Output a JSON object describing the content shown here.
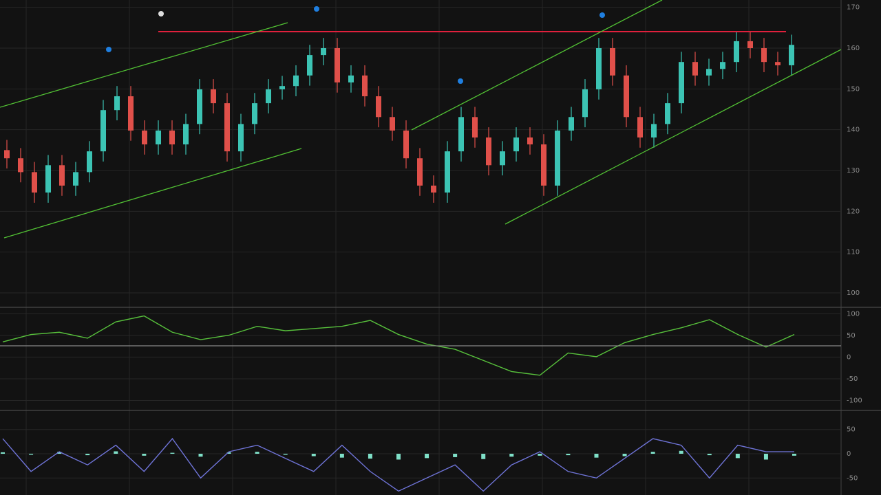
{
  "chart_data": [
    {
      "type": "candlestick",
      "open": [
        135.0,
        133.0,
        129.6,
        124.6,
        131.3,
        126.3,
        129.6,
        134.7,
        144.8,
        148.2,
        139.8,
        136.4,
        139.8,
        136.4,
        141.4,
        149.9,
        146.5,
        134.7,
        141.4,
        146.5,
        149.9,
        150.7,
        153.3,
        158.3,
        160.0,
        151.6,
        153.3,
        148.2,
        143.1,
        139.8,
        133.0,
        126.3,
        124.6,
        134.7,
        143.1,
        138.1,
        131.3,
        134.7,
        138.1,
        136.4,
        126.3,
        139.8,
        143.1,
        149.9,
        160.0,
        153.3,
        143.1,
        138.1,
        141.4,
        146.5,
        156.6,
        153.3,
        154.9,
        156.6,
        161.7,
        160.0,
        156.6,
        155.8
      ],
      "high": [
        137.5,
        135.5,
        132.1,
        133.8,
        133.8,
        132.1,
        137.2,
        147.3,
        150.7,
        150.7,
        142.3,
        142.3,
        142.3,
        143.9,
        152.4,
        152.4,
        149.0,
        143.9,
        149.0,
        152.4,
        153.2,
        155.8,
        160.8,
        162.5,
        162.5,
        155.8,
        155.8,
        150.7,
        145.6,
        142.3,
        135.5,
        128.8,
        137.2,
        145.6,
        145.6,
        140.6,
        137.2,
        140.6,
        140.6,
        138.9,
        142.3,
        145.6,
        152.4,
        162.5,
        162.5,
        155.8,
        145.6,
        143.9,
        149.0,
        159.1,
        159.1,
        157.4,
        159.1,
        164.2,
        164.2,
        162.5,
        159.1,
        163.3
      ],
      "low": [
        130.5,
        127.1,
        122.1,
        122.1,
        123.8,
        123.8,
        127.1,
        132.2,
        142.3,
        137.3,
        133.9,
        133.9,
        133.9,
        133.9,
        138.9,
        144.0,
        132.2,
        132.2,
        138.9,
        144.0,
        147.4,
        148.2,
        150.8,
        155.8,
        149.1,
        149.1,
        145.7,
        140.6,
        137.3,
        130.5,
        123.8,
        122.1,
        122.1,
        132.2,
        135.6,
        128.8,
        128.8,
        132.2,
        133.9,
        123.8,
        123.8,
        137.3,
        140.6,
        147.4,
        150.8,
        140.6,
        135.6,
        135.6,
        138.9,
        144.0,
        150.8,
        150.8,
        152.4,
        154.1,
        157.5,
        154.1,
        153.3,
        153.3
      ],
      "close": [
        133.0,
        129.6,
        124.6,
        131.3,
        126.3,
        129.6,
        134.7,
        144.8,
        148.2,
        139.8,
        136.4,
        139.8,
        136.4,
        141.4,
        149.9,
        146.5,
        134.7,
        141.4,
        146.5,
        149.9,
        150.7,
        153.3,
        158.3,
        160.0,
        151.6,
        153.3,
        148.2,
        143.1,
        139.8,
        133.0,
        126.3,
        124.6,
        134.7,
        143.1,
        138.1,
        131.3,
        134.7,
        138.1,
        136.4,
        126.3,
        139.8,
        143.1,
        149.9,
        160.0,
        153.3,
        143.1,
        138.1,
        141.4,
        146.5,
        156.6,
        153.3,
        154.9,
        156.6,
        161.7,
        160.0,
        156.6,
        155.8,
        160.8
      ],
      "up_color": "#3cc4b4",
      "down_color": "#e0504a",
      "ylim": [
        96.8,
        171.8
      ],
      "yticks": [
        100,
        110,
        120,
        130,
        140,
        150,
        160,
        170
      ],
      "grid": true
    },
    {
      "type": "line",
      "values": [
        35.1,
        52.1,
        57.3,
        43.6,
        81.2,
        94.9,
        57.3,
        40.2,
        50.4,
        70.9,
        60.7,
        65.8,
        70.9,
        84.6,
        52.1,
        29.9,
        18.0,
        -7.7,
        -33.3,
        -41.8,
        9.4,
        0.9,
        33.3,
        52.1,
        67.5,
        86.3,
        52.1,
        23.1,
        52.1
      ],
      "color": "#58c23c",
      "ylim": [
        -115,
        110
      ],
      "yticks": [
        100,
        50,
        0,
        -50,
        -100
      ],
      "grid": true
    },
    {
      "type": "macd",
      "values": [
        31.1,
        -36.5,
        4.1,
        -23.0,
        17.6,
        -36.5,
        31.1,
        -50.0,
        4.1,
        17.6,
        -9.5,
        -36.5,
        17.6,
        -36.5,
        -77.0,
        -50.0,
        -23.0,
        -77.0,
        -23.0,
        4.1,
        -36.5,
        -50.0,
        -9.5,
        31.1,
        17.6,
        -50.0,
        17.6,
        4.1,
        4.1
      ],
      "histogram": [
        3,
        -2,
        4,
        -3,
        5,
        -4,
        2,
        -6,
        3,
        4,
        -2,
        -5,
        -8,
        -10,
        -12,
        -9,
        -7,
        -11,
        -6,
        -4,
        -3,
        -8,
        -5,
        4,
        6,
        -3,
        -9,
        -12,
        -4
      ],
      "color": "#6f74d8",
      "hist_color": "#7fe0c8",
      "ylim": [
        -85,
        85
      ],
      "yticks": [
        50,
        0,
        -50
      ],
      "grid": true
    }
  ]
}
